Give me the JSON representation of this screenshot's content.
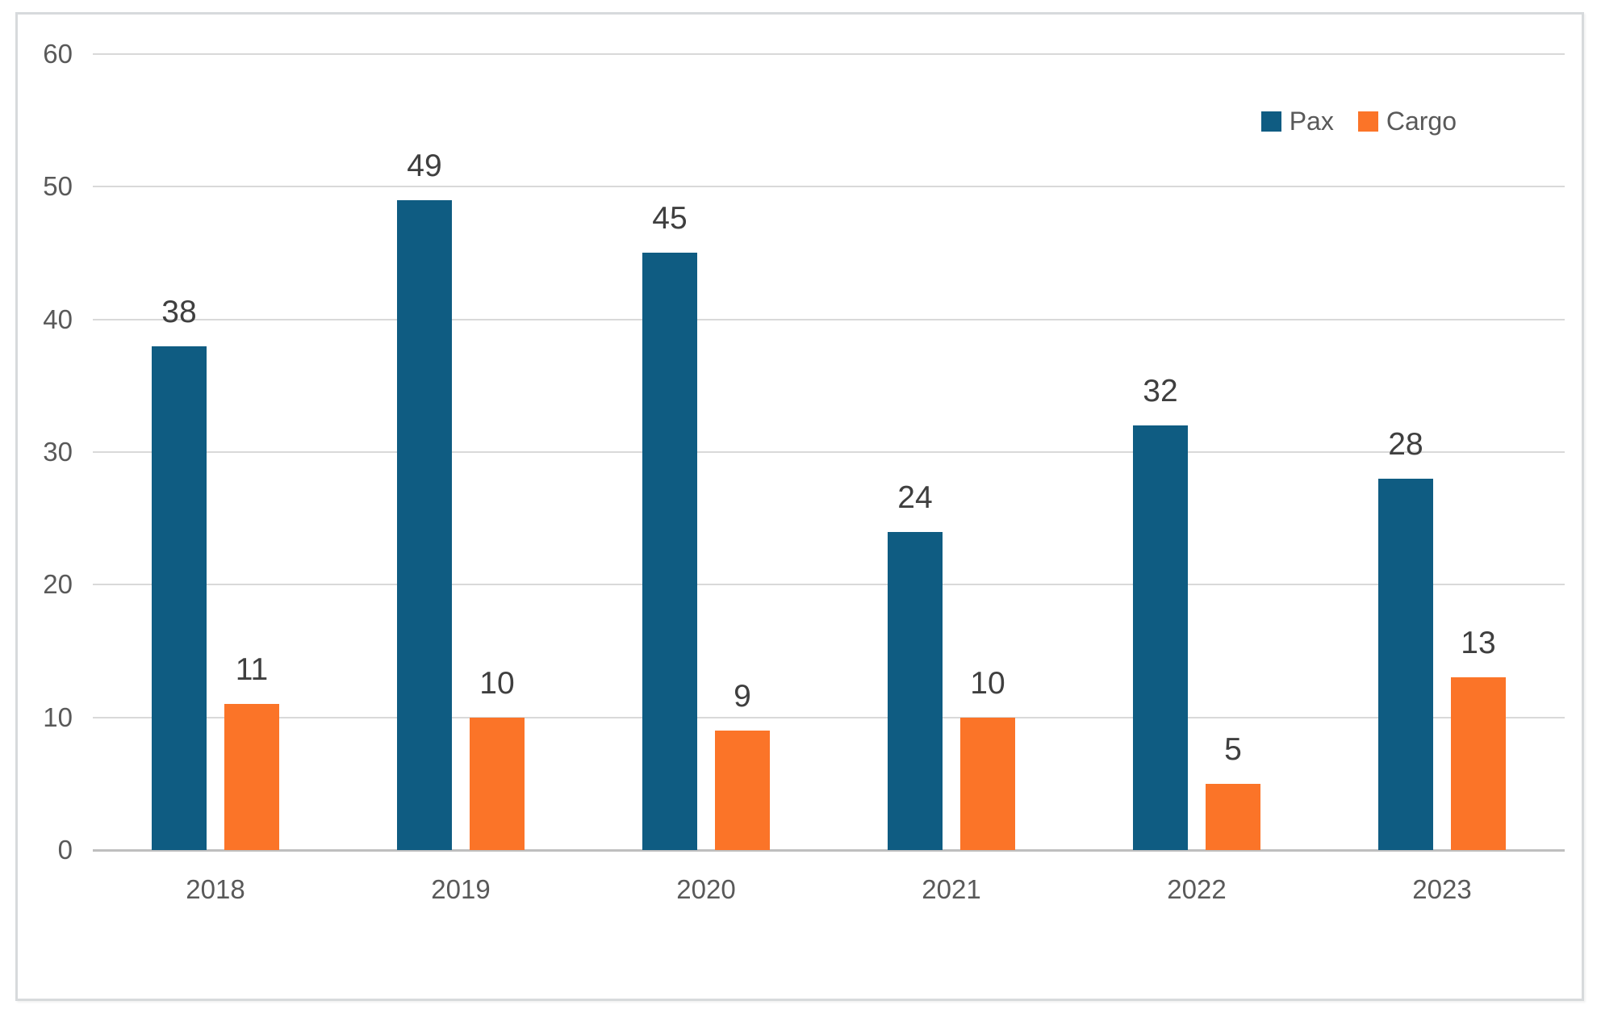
{
  "chart_data": {
    "type": "bar",
    "categories": [
      "2018",
      "2019",
      "2020",
      "2021",
      "2022",
      "2023"
    ],
    "series": [
      {
        "name": "Pax",
        "color": "#0F5C82",
        "values": [
          38,
          49,
          45,
          24,
          32,
          28
        ]
      },
      {
        "name": "Cargo",
        "color": "#FB7428",
        "values": [
          11,
          10,
          9,
          10,
          5,
          13
        ]
      }
    ],
    "title": "",
    "xlabel": "",
    "ylabel": "",
    "ylim": [
      0,
      60
    ],
    "yticks": [
      0,
      10,
      20,
      30,
      40,
      50,
      60
    ],
    "grid": true,
    "legend_position": "top-right",
    "data_labels": true,
    "colors": {
      "gridline": "#d9d9d9",
      "axis_line": "#bfbfbf",
      "tick_label": "#595959",
      "data_label": "#3f3f3f",
      "legend_label": "#595959",
      "chart_border": "#d7dadc",
      "background": "#ffffff"
    }
  }
}
